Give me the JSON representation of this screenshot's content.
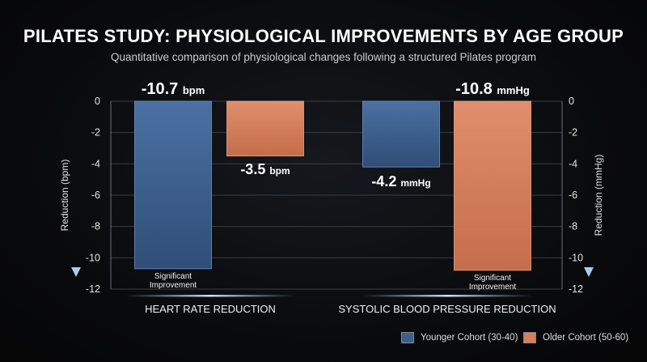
{
  "title": "PILATES STUDY: PHYSIOLOGICAL IMPROVEMENTS BY AGE GROUP",
  "subtitle": "Quantitative comparison of physiological changes following a structured Pilates program",
  "colors": {
    "younger": "#3d5f8e",
    "older": "#d67f5c",
    "axis_arrow": "#8fb6e0"
  },
  "chart_data": {
    "type": "bar",
    "categories": [
      "HEART RATE REDUCTION",
      "SYSTOLIC BLOOD PRESSURE REDUCTION"
    ],
    "series": [
      {
        "name": "Younger Cohort (30-40)",
        "values": [
          -10.7,
          -4.2
        ]
      },
      {
        "name": "Older Cohort (50-60)",
        "values": [
          -3.5,
          -10.8
        ]
      }
    ],
    "value_labels": [
      [
        {
          "num": "-10.7",
          "unit": "bpm"
        },
        {
          "num": "-4.2",
          "unit": "mmHg"
        }
      ],
      [
        {
          "num": "-3.5",
          "unit": "bpm"
        },
        {
          "num": "-10.8",
          "unit": "mmHg"
        }
      ]
    ],
    "annotations": [
      {
        "series": 0,
        "category": 0,
        "text": [
          "Significant",
          "Improvement"
        ]
      },
      {
        "series": 1,
        "category": 1,
        "text": [
          "Significant",
          "Improvement"
        ]
      }
    ],
    "ylabel_left": "Reduction (bpm)",
    "ylabel_right": "Reduction (mmHg)",
    "ylim": [
      -12,
      0
    ],
    "yticks": [
      0,
      -2,
      -4,
      -6,
      -8,
      -10,
      -12
    ],
    "grid": true,
    "legend_position": "bottom-right"
  },
  "legend": [
    {
      "label": "Younger Cohort (30-40)"
    },
    {
      "label": "Older Cohort (50-60)"
    }
  ]
}
